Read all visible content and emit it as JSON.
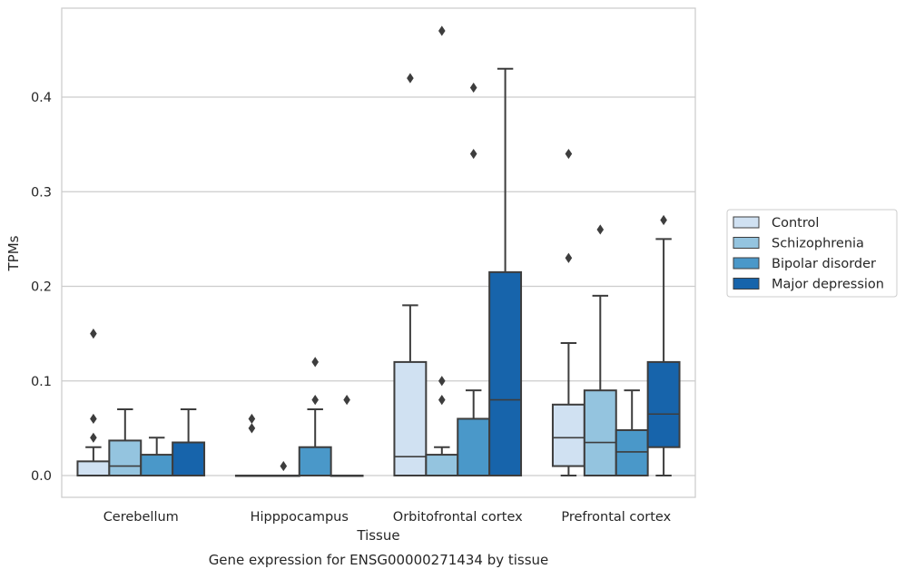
{
  "chart_data": {
    "type": "box",
    "title": "Gene expression for ENSG00000271434 by tissue",
    "xlabel": "Tissue",
    "ylabel": "TPMs",
    "ylim": [
      -0.023,
      0.496
    ],
    "yticks": [
      0.0,
      0.1,
      0.2,
      0.3,
      0.4
    ],
    "ytick_labels": [
      "0.0",
      "0.1",
      "0.2",
      "0.3",
      "0.4"
    ],
    "grid": "horizontal",
    "legend_position": "right",
    "categories": [
      "Cerebellum",
      "Hipppocampus",
      "Orbitofrontal cortex",
      "Prefrontal cortex"
    ],
    "series": [
      {
        "name": "Control",
        "color": "#d0e1f2",
        "boxes": [
          {
            "whisker_low": 0,
            "q1": 0,
            "median": 0,
            "q3": 0.015,
            "whisker_high": 0.03,
            "outliers": [
              0.04,
              0.06,
              0.15
            ]
          },
          {
            "whisker_low": 0,
            "q1": 0,
            "median": 0,
            "q3": 0,
            "whisker_high": 0,
            "outliers": [
              0.05,
              0.06
            ]
          },
          {
            "whisker_low": 0,
            "q1": 0,
            "median": 0.02,
            "q3": 0.12,
            "whisker_high": 0.18,
            "outliers": [
              0.42
            ]
          },
          {
            "whisker_low": 0,
            "q1": 0.01,
            "median": 0.04,
            "q3": 0.075,
            "whisker_high": 0.14,
            "outliers": [
              0.23,
              0.34
            ]
          }
        ]
      },
      {
        "name": "Schizophrenia",
        "color": "#94c4df",
        "boxes": [
          {
            "whisker_low": 0,
            "q1": 0,
            "median": 0.01,
            "q3": 0.037,
            "whisker_high": 0.07,
            "outliers": []
          },
          {
            "whisker_low": 0,
            "q1": 0,
            "median": 0,
            "q3": 0,
            "whisker_high": 0,
            "outliers": [
              0.01
            ]
          },
          {
            "whisker_low": 0,
            "q1": 0,
            "median": 0,
            "q3": 0.022,
            "whisker_high": 0.03,
            "outliers": [
              0.08,
              0.1,
              0.47
            ]
          },
          {
            "whisker_low": 0,
            "q1": 0,
            "median": 0.035,
            "q3": 0.09,
            "whisker_high": 0.19,
            "outliers": [
              0.26
            ]
          }
        ]
      },
      {
        "name": "Bipolar disorder",
        "color": "#4a98c9",
        "boxes": [
          {
            "whisker_low": 0,
            "q1": 0,
            "median": 0,
            "q3": 0.022,
            "whisker_high": 0.04,
            "outliers": []
          },
          {
            "whisker_low": 0,
            "q1": 0,
            "median": 0,
            "q3": 0.03,
            "whisker_high": 0.07,
            "outliers": [
              0.08,
              0.12
            ]
          },
          {
            "whisker_low": 0,
            "q1": 0,
            "median": 0,
            "q3": 0.06,
            "whisker_high": 0.09,
            "outliers": [
              0.34,
              0.41
            ]
          },
          {
            "whisker_low": 0,
            "q1": 0,
            "median": 0.025,
            "q3": 0.048,
            "whisker_high": 0.09,
            "outliers": []
          }
        ]
      },
      {
        "name": "Major depression",
        "color": "#1764ab",
        "boxes": [
          {
            "whisker_low": 0,
            "q1": 0,
            "median": 0,
            "q3": 0.035,
            "whisker_high": 0.07,
            "outliers": []
          },
          {
            "whisker_low": 0,
            "q1": 0,
            "median": 0,
            "q3": 0,
            "whisker_high": 0,
            "outliers": [
              0.08
            ]
          },
          {
            "whisker_low": 0,
            "q1": 0,
            "median": 0.08,
            "q3": 0.215,
            "whisker_high": 0.43,
            "outliers": []
          },
          {
            "whisker_low": 0,
            "q1": 0.03,
            "median": 0.065,
            "q3": 0.12,
            "whisker_high": 0.25,
            "outliers": [
              0.27
            ]
          }
        ]
      }
    ]
  }
}
